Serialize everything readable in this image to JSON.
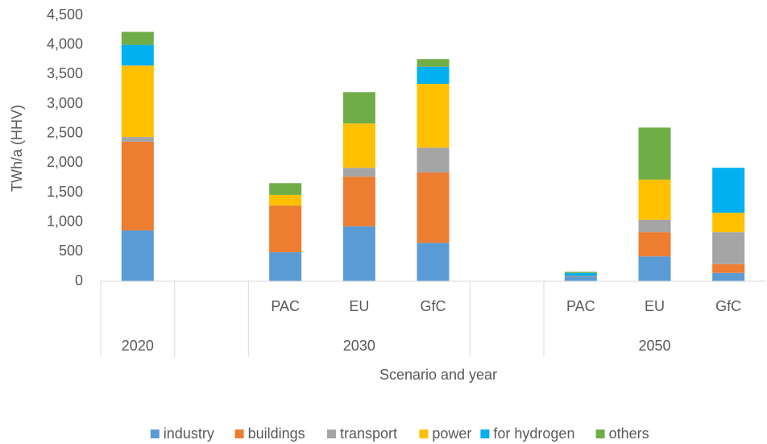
{
  "chart_data": {
    "type": "stacked_bar",
    "ylabel": "TWh/a (HHV)",
    "xlabel": "Scenario and year",
    "categories": [
      null,
      null,
      "PAC",
      "EU",
      "GfC",
      null,
      "PAC",
      "EU",
      "GfC"
    ],
    "groups": [
      {
        "label": "2020",
        "size": 1
      },
      {
        "label": null,
        "size": 1
      },
      {
        "label": "2030",
        "size": 3
      },
      {
        "label": null,
        "size": 1
      },
      {
        "label": "2050",
        "size": 3
      }
    ],
    "series": [
      {
        "name": "industry",
        "color": "#5b9bd5",
        "values": [
          860,
          null,
          490,
          930,
          650,
          null,
          80,
          420,
          140
        ]
      },
      {
        "name": "buildings",
        "color": "#ed7d31",
        "values": [
          1500,
          null,
          790,
          840,
          1190,
          null,
          10,
          410,
          150
        ]
      },
      {
        "name": "transport",
        "color": "#a5a5a5",
        "values": [
          80,
          null,
          0,
          150,
          420,
          null,
          0,
          210,
          540
        ]
      },
      {
        "name": "power",
        "color": "#ffc000",
        "values": [
          1210,
          null,
          180,
          750,
          1080,
          null,
          0,
          680,
          330
        ]
      },
      {
        "name": "for hydrogen",
        "color": "#00b0f0",
        "values": [
          350,
          null,
          0,
          0,
          290,
          null,
          50,
          0,
          760
        ]
      },
      {
        "name": "others",
        "color": "#70ad47",
        "values": [
          220,
          null,
          200,
          530,
          130,
          null,
          20,
          880,
          0
        ]
      }
    ],
    "ylim": [
      0,
      4500
    ],
    "yticks": [
      0,
      500,
      {
        "value": 1000,
        "label": "1,000"
      },
      {
        "value": 1500,
        "label": "1,500"
      },
      {
        "value": 2000,
        "label": "2,000"
      },
      {
        "value": 2500,
        "label": "2,500"
      },
      {
        "value": 3000,
        "label": "3,000"
      },
      {
        "value": 3500,
        "label": "3,500"
      },
      {
        "value": 4000,
        "label": "4,000"
      },
      {
        "value": 4500,
        "label": "4,500"
      }
    ],
    "grid": false,
    "legend": "bottom"
  }
}
